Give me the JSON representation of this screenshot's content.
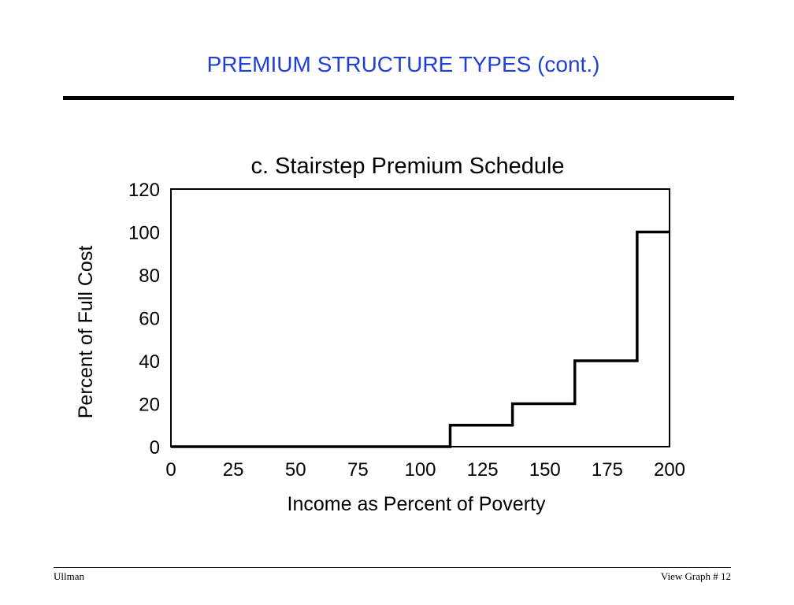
{
  "slide": {
    "title": "PREMIUM STRUCTURE TYPES (cont.)",
    "footer_left": "Ullman",
    "footer_right": "View Graph  # 12"
  },
  "chart_data": {
    "type": "line",
    "title": "c. Stairstep Premium Schedule",
    "xlabel": "Income as Percent of Poverty",
    "ylabel": "Percent of Full Cost",
    "xlim": [
      0,
      200
    ],
    "ylim": [
      0,
      120
    ],
    "x_ticks": [
      0,
      25,
      50,
      75,
      100,
      125,
      150,
      175,
      200
    ],
    "y_ticks": [
      0,
      20,
      40,
      60,
      80,
      100,
      120
    ],
    "grid": false,
    "series": [
      {
        "step": "post",
        "points": [
          {
            "x": 0,
            "y": 0
          },
          {
            "x": 112,
            "y": 10
          },
          {
            "x": 137,
            "y": 20
          },
          {
            "x": 162,
            "y": 40
          },
          {
            "x": 187,
            "y": 100
          },
          {
            "x": 200,
            "y": 100
          }
        ]
      }
    ]
  }
}
